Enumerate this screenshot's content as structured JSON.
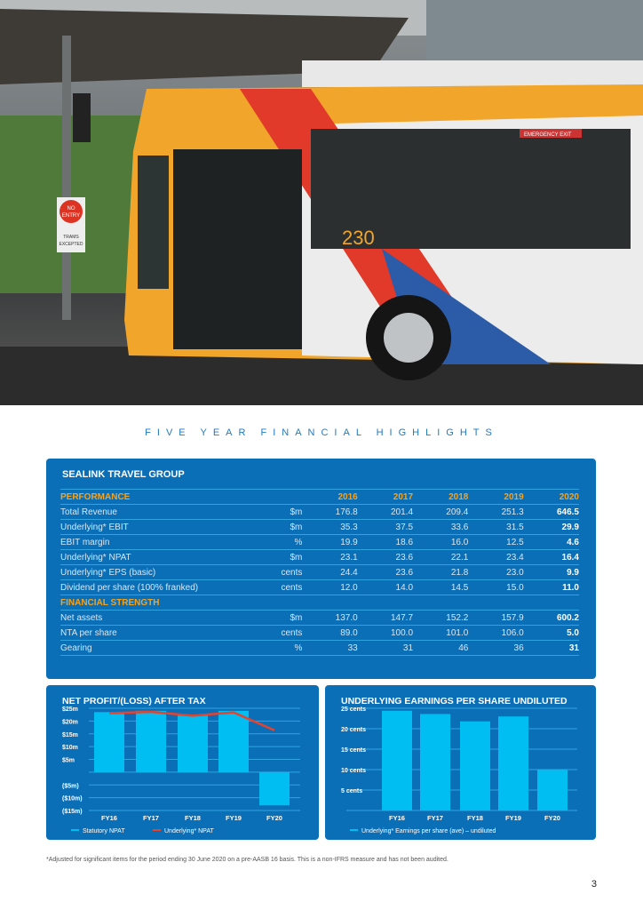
{
  "section_title": "FIVE YEAR FINANCIAL HIGHLIGHTS",
  "table": {
    "title": "SEALINK TRAVEL GROUP",
    "years": [
      "2016",
      "2017",
      "2018",
      "2019",
      "2020"
    ],
    "performance_label": "PERFORMANCE",
    "performance": [
      {
        "label": "Total Revenue",
        "unit": "$m",
        "values": [
          "176.8",
          "201.4",
          "209.4",
          "251.3",
          "646.5"
        ]
      },
      {
        "label": "Underlying* EBIT",
        "unit": "$m",
        "values": [
          "35.3",
          "37.5",
          "33.6",
          "31.5",
          "29.9"
        ]
      },
      {
        "label": "EBIT margin",
        "unit": "%",
        "values": [
          "19.9",
          "18.6",
          "16.0",
          "12.5",
          "4.6"
        ]
      },
      {
        "label": "Underlying* NPAT",
        "unit": "$m",
        "values": [
          "23.1",
          "23.6",
          "22.1",
          "23.4",
          "16.4"
        ]
      },
      {
        "label": "Underlying* EPS (basic)",
        "unit": "cents",
        "values": [
          "24.4",
          "23.6",
          "21.8",
          "23.0",
          "9.9"
        ]
      },
      {
        "label": "Dividend per share (100% franked)",
        "unit": "cents",
        "values": [
          "12.0",
          "14.0",
          "14.5",
          "15.0",
          "11.0"
        ]
      }
    ],
    "strength_label": "FINANCIAL STRENGTH",
    "strength": [
      {
        "label": "Net assets",
        "unit": "$m",
        "values": [
          "137.0",
          "147.7",
          "152.2",
          "157.9",
          "600.2"
        ]
      },
      {
        "label": "NTA per share",
        "unit": "cents",
        "values": [
          "89.0",
          "100.0",
          "101.0",
          "106.0",
          "5.0"
        ]
      },
      {
        "label": "Gearing",
        "unit": "%",
        "values": [
          "33",
          "31",
          "46",
          "36",
          "31"
        ]
      }
    ]
  },
  "chart_data": [
    {
      "type": "bar",
      "title": "NET PROFIT/(LOSS) AFTER TAX",
      "categories": [
        "FY16",
        "FY17",
        "FY18",
        "FY19",
        "FY20"
      ],
      "yticks": [
        25,
        20,
        15,
        10,
        5,
        0,
        -5,
        -10,
        -15
      ],
      "ytick_labels": [
        "$25m",
        "$20m",
        "$15m",
        "$10m",
        "$5m",
        "",
        "($5m)",
        "($10m)",
        "($15m)"
      ],
      "ylim": [
        -15,
        25
      ],
      "series": [
        {
          "name": "Statutory NPAT",
          "type": "bar",
          "color": "#00bdf2",
          "values": [
            23.5,
            24,
            22.5,
            24,
            -13
          ]
        },
        {
          "name": "Underlying* NPAT",
          "type": "line",
          "color": "#e8412c",
          "values": [
            23.1,
            23.6,
            22.1,
            23.4,
            16.4
          ]
        }
      ],
      "legend": "bottom-left"
    },
    {
      "type": "bar",
      "title": "UNDERLYING EARNINGS PER SHARE UNDILUTED",
      "categories": [
        "FY16",
        "FY17",
        "FY18",
        "FY19",
        "FY20"
      ],
      "yticks": [
        25,
        20,
        15,
        10,
        5,
        0
      ],
      "ytick_labels": [
        "25 cents",
        "20 cents",
        "15 cents",
        "10 cents",
        "5 cents",
        ""
      ],
      "ylim": [
        0,
        25
      ],
      "series": [
        {
          "name": "Underlying* Earnings per share (ave) – undiluted",
          "type": "bar",
          "color": "#00bdf2",
          "values": [
            24.4,
            23.6,
            21.8,
            23.0,
            9.9
          ]
        }
      ],
      "legend": "bottom-left"
    }
  ],
  "photo": {
    "sign_text": [
      "NO",
      "ENTRY",
      "TRAMS",
      "EXCEPTED"
    ],
    "bus_number": "230",
    "bus_sign": "EMERGENCY EXIT"
  },
  "footnote": "*Adjusted for significant items for the period ending 30 June 2020 on a pre-AASB 16 basis. This is a non-IFRS measure and has not been audited.",
  "page_number": "3"
}
